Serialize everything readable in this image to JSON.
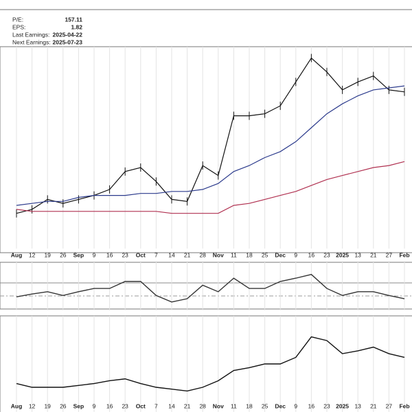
{
  "info": [
    {
      "label": "P/E:",
      "value": "157.11"
    },
    {
      "label": "EPS:",
      "value": "1.82"
    },
    {
      "label": "Last Earnings:",
      "value": "2025-04-22"
    },
    {
      "label": "Next Earnings:",
      "value": "2025-07-23"
    }
  ],
  "chart_data": [
    {
      "type": "line",
      "categories": [
        "Aug",
        "12",
        "19",
        "26",
        "Sep",
        "9",
        "16",
        "23",
        "Oct",
        "7",
        "14",
        "21",
        "28",
        "Nov",
        "11",
        "18",
        "25",
        "Dec",
        "9",
        "16",
        "23",
        "2025",
        "13",
        "21",
        "27",
        "Feb"
      ],
      "ylim": [
        0,
        100
      ],
      "grid": true,
      "series": [
        {
          "color": "#111111",
          "values": [
            17,
            19,
            24,
            22,
            24,
            26,
            29,
            38,
            40,
            33,
            24,
            23,
            41,
            36,
            66,
            66,
            67,
            71,
            83,
            95,
            88,
            79,
            83,
            86,
            79,
            78
          ]
        },
        {
          "color": "#2b3a8c",
          "values": [
            21,
            22,
            23,
            23,
            25,
            26,
            26,
            26,
            27,
            27,
            28,
            28,
            29,
            32,
            38,
            41,
            45,
            48,
            53,
            60,
            67,
            72,
            76,
            79,
            80,
            81
          ]
        },
        {
          "color": "#b03050",
          "values": [
            19,
            18,
            18,
            18,
            18,
            18,
            18,
            18,
            18,
            18,
            17,
            17,
            17,
            17,
            21,
            22,
            24,
            26,
            28,
            31,
            34,
            36,
            38,
            40,
            41,
            43
          ]
        }
      ]
    },
    {
      "type": "line",
      "ylim": [
        0,
        100
      ],
      "grid": true,
      "series": [
        {
          "color": "#333333",
          "values": [
            26,
            32,
            37,
            29,
            37,
            44,
            44,
            59,
            59,
            29,
            15,
            22,
            51,
            37,
            66,
            44,
            44,
            59,
            66,
            74,
            44,
            29,
            37,
            37,
            29,
            22
          ]
        }
      ]
    },
    {
      "type": "line",
      "categories": [
        "Aug",
        "12",
        "19",
        "26",
        "Sep",
        "9",
        "16",
        "23",
        "Oct",
        "7",
        "14",
        "21",
        "28",
        "Nov",
        "11",
        "18",
        "25",
        "Dec",
        "9",
        "16",
        "23",
        "2025",
        "13",
        "21",
        "27",
        "Feb"
      ],
      "ylim": [
        0,
        100
      ],
      "grid": true,
      "series": [
        {
          "color": "#111111",
          "values": [
            29,
            25,
            25,
            25,
            27,
            29,
            32,
            34,
            29,
            25,
            23,
            21,
            25,
            32,
            43,
            46,
            50,
            50,
            57,
            79,
            75,
            61,
            64,
            68,
            61,
            57
          ]
        }
      ]
    }
  ]
}
